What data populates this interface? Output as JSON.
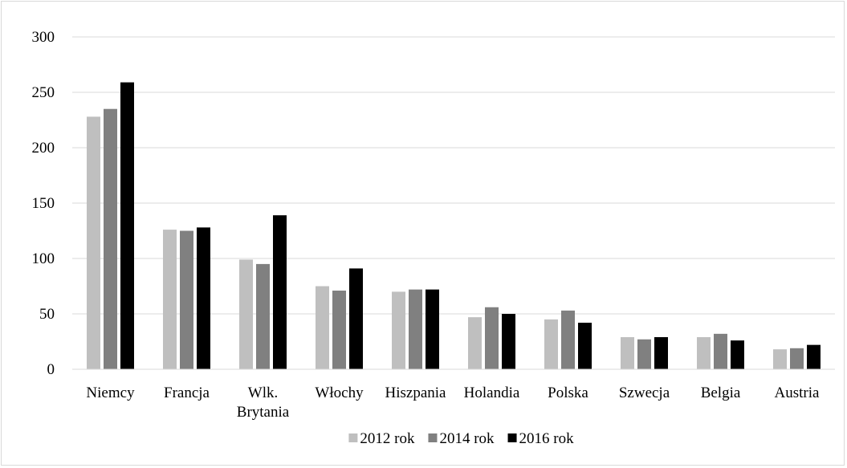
{
  "chart_data": {
    "type": "bar",
    "title": "",
    "xlabel": "",
    "ylabel": "",
    "ylim": [
      0,
      300
    ],
    "yticks": [
      0,
      50,
      100,
      150,
      200,
      250,
      300
    ],
    "grid": true,
    "legend_position": "bottom",
    "categories": [
      "Niemcy",
      "Francja",
      "Wlk. Brytania",
      "Włochy",
      "Hiszpania",
      "Holandia",
      "Polska",
      "Szwecja",
      "Belgia",
      "Austria"
    ],
    "series": [
      {
        "name": "2012 rok",
        "color": "#bfbfbf",
        "values": [
          228,
          126,
          99,
          75,
          70,
          47,
          45,
          29,
          29,
          18
        ]
      },
      {
        "name": "2014 rok",
        "color": "#808080",
        "values": [
          235,
          125,
          95,
          71,
          72,
          56,
          53,
          27,
          32,
          19
        ]
      },
      {
        "name": "2016 rok",
        "color": "#000000",
        "values": [
          259,
          128,
          139,
          91,
          72,
          50,
          42,
          29,
          26,
          22
        ]
      }
    ]
  }
}
